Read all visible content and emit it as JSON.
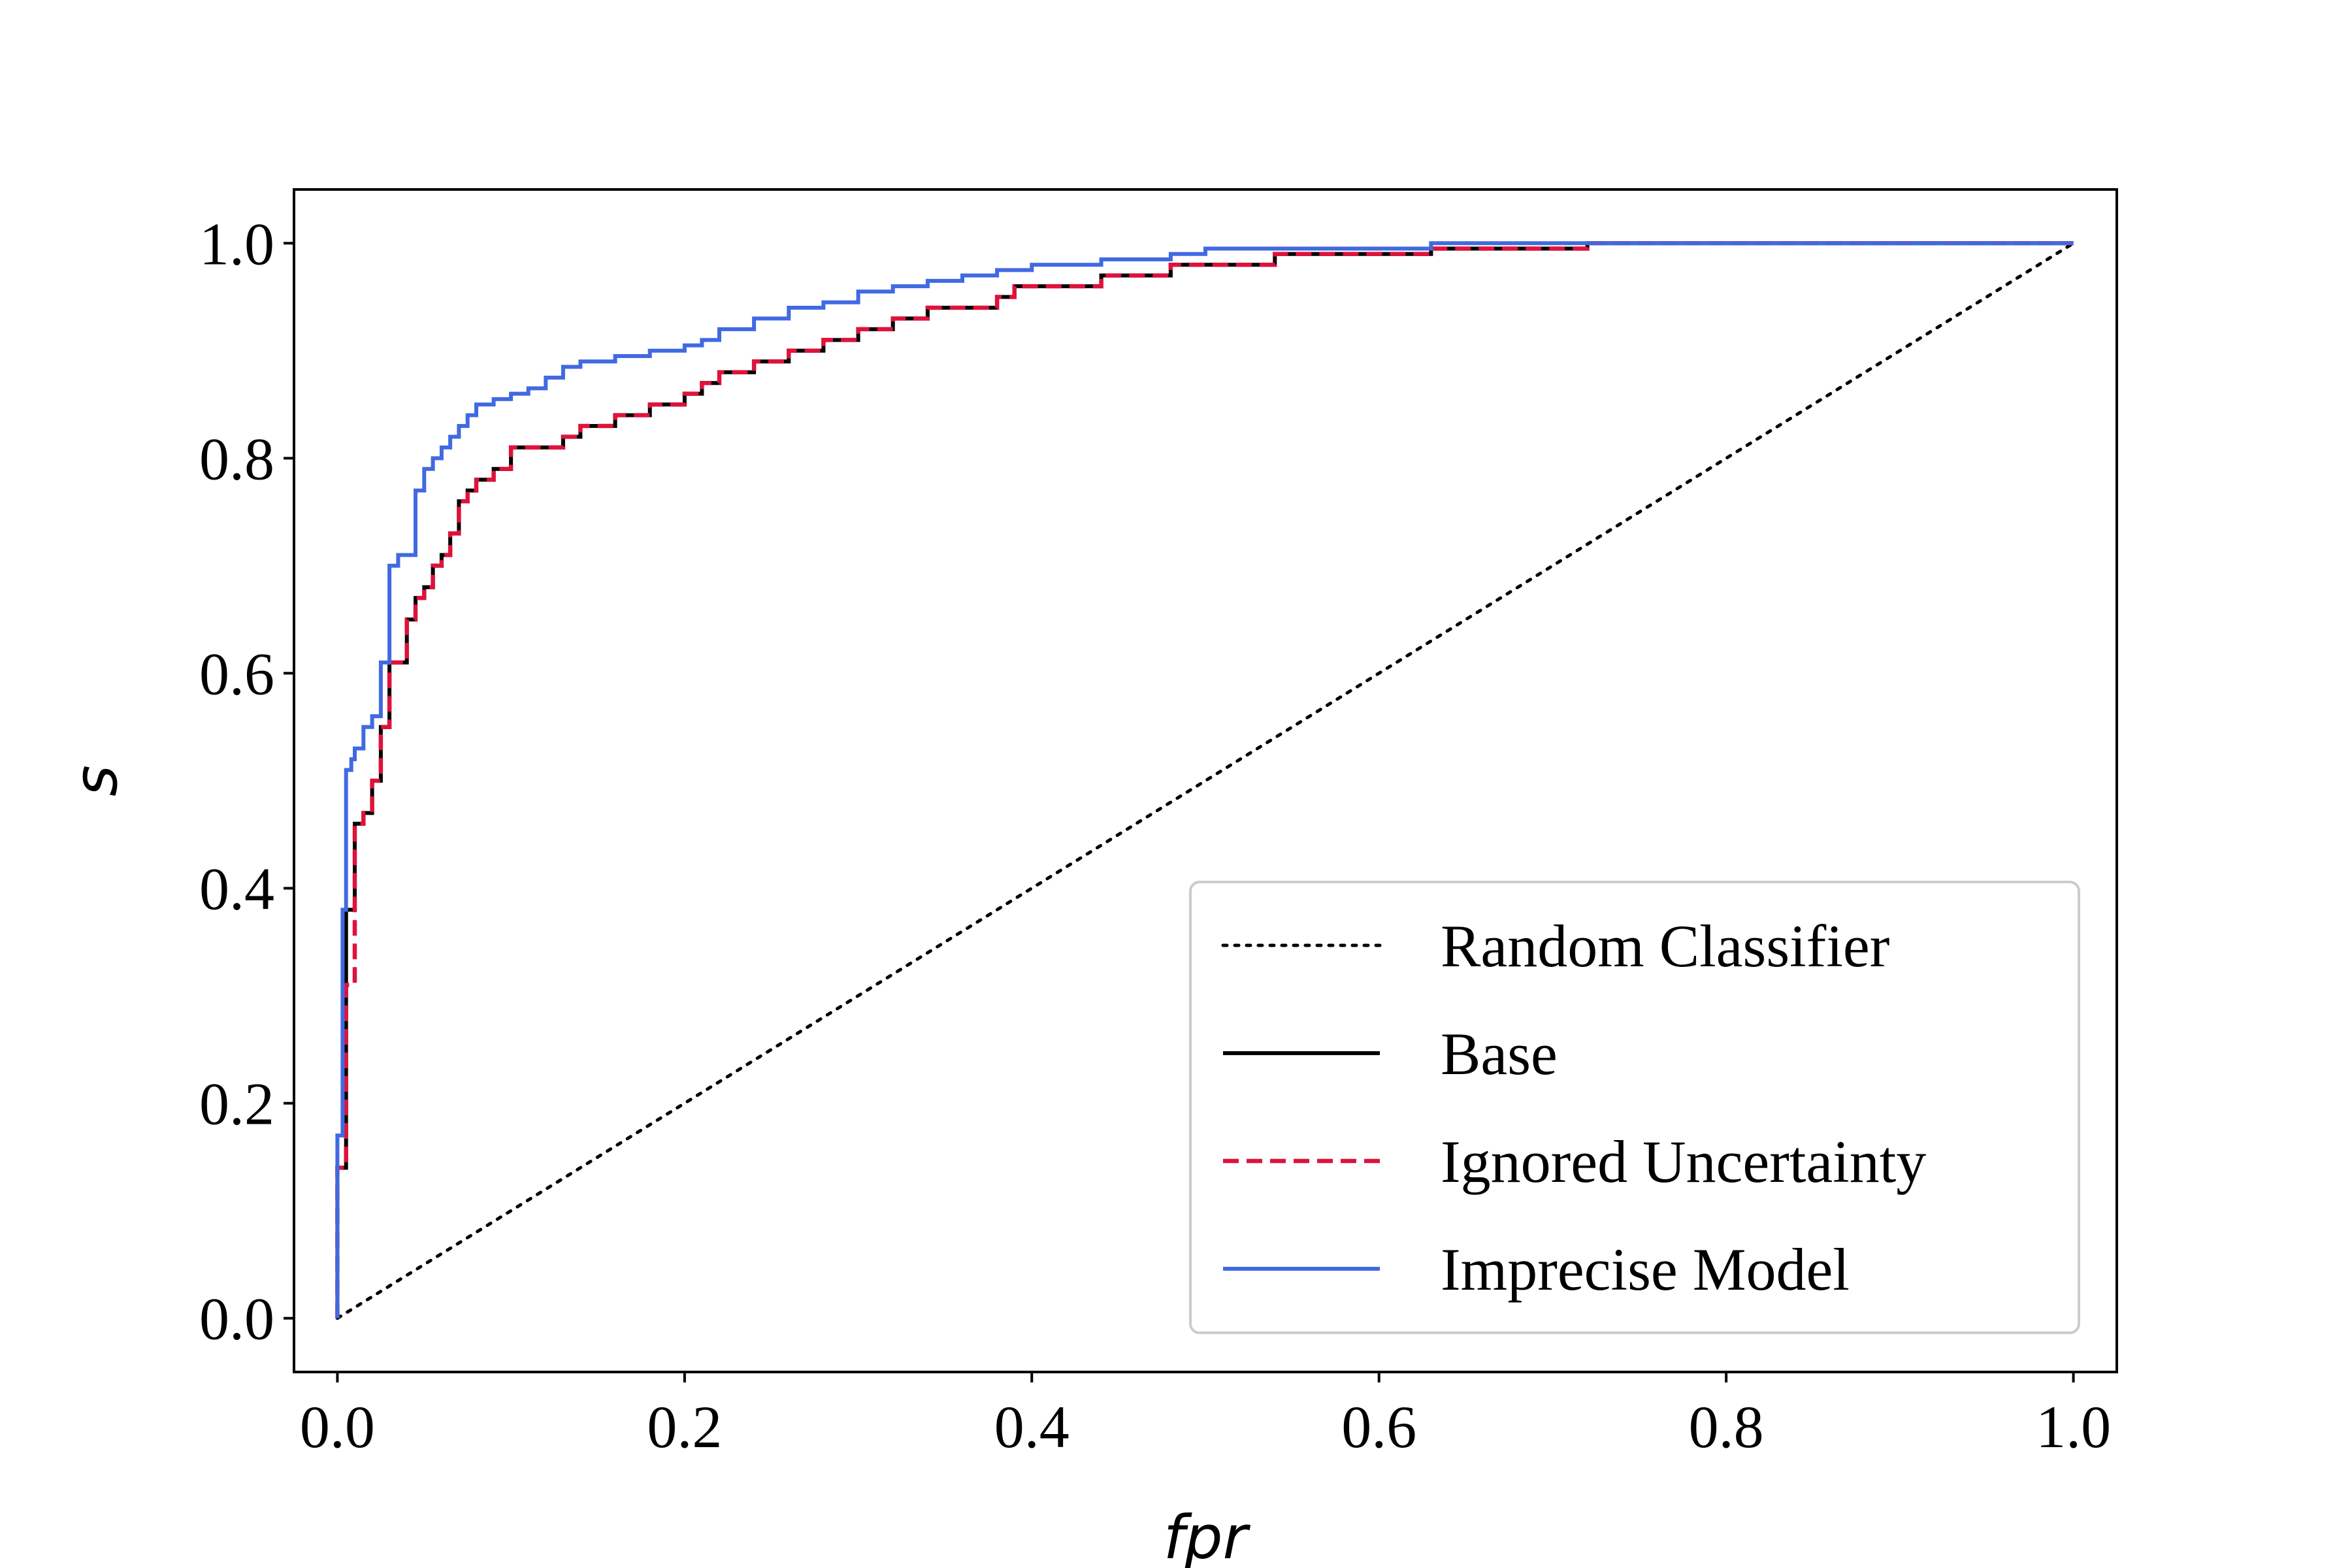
{
  "chart_data": {
    "type": "line",
    "xlabel": "fpr",
    "ylabel": "s",
    "xlim": [
      -0.025,
      1.025
    ],
    "ylim": [
      -0.05,
      1.05
    ],
    "xticks": [
      0.0,
      0.2,
      0.4,
      0.6,
      0.8,
      1.0
    ],
    "yticks": [
      0.0,
      0.2,
      0.4,
      0.6,
      0.8,
      1.0
    ],
    "xtick_labels": [
      "0.0",
      "0.2",
      "0.4",
      "0.6",
      "0.8",
      "1.0"
    ],
    "ytick_labels": [
      "0.0",
      "0.2",
      "0.4",
      "0.6",
      "0.8",
      "1.0"
    ],
    "grid": false,
    "legend_position": "lower-right",
    "series": [
      {
        "name": "Random Classifier",
        "style": "dotted",
        "color": "#000000",
        "x": [
          0.0,
          1.0
        ],
        "y": [
          0.0,
          1.0
        ]
      },
      {
        "name": "Base",
        "style": "solid",
        "color": "#000000",
        "x": [
          0.0,
          0.0,
          0.005,
          0.005,
          0.01,
          0.01,
          0.015,
          0.02,
          0.025,
          0.03,
          0.03,
          0.04,
          0.045,
          0.05,
          0.055,
          0.06,
          0.065,
          0.07,
          0.075,
          0.08,
          0.09,
          0.1,
          0.11,
          0.13,
          0.14,
          0.16,
          0.18,
          0.2,
          0.21,
          0.22,
          0.24,
          0.26,
          0.28,
          0.3,
          0.32,
          0.34,
          0.36,
          0.38,
          0.39,
          0.42,
          0.44,
          0.46,
          0.48,
          0.5,
          0.52,
          0.54,
          0.56,
          0.58,
          0.6,
          0.63,
          0.66,
          0.7,
          0.72,
          1.0
        ],
        "y": [
          0.0,
          0.14,
          0.16,
          0.38,
          0.44,
          0.46,
          0.47,
          0.5,
          0.55,
          0.61,
          0.61,
          0.65,
          0.67,
          0.68,
          0.7,
          0.71,
          0.73,
          0.76,
          0.77,
          0.78,
          0.79,
          0.81,
          0.81,
          0.82,
          0.83,
          0.84,
          0.85,
          0.86,
          0.87,
          0.88,
          0.89,
          0.9,
          0.91,
          0.92,
          0.93,
          0.94,
          0.94,
          0.95,
          0.96,
          0.96,
          0.97,
          0.97,
          0.98,
          0.98,
          0.98,
          0.99,
          0.99,
          0.99,
          0.99,
          0.995,
          0.995,
          0.995,
          1.0,
          1.0
        ]
      },
      {
        "name": "Ignored Uncertainty",
        "style": "dashed",
        "color": "#dc143c",
        "x": [
          0.0,
          0.0,
          0.005,
          0.005,
          0.01,
          0.01,
          0.015,
          0.02,
          0.025,
          0.03,
          0.03,
          0.04,
          0.045,
          0.05,
          0.055,
          0.06,
          0.065,
          0.07,
          0.075,
          0.08,
          0.09,
          0.1,
          0.11,
          0.13,
          0.14,
          0.16,
          0.18,
          0.2,
          0.21,
          0.22,
          0.24,
          0.26,
          0.28,
          0.3,
          0.32,
          0.34,
          0.36,
          0.38,
          0.39,
          0.42,
          0.44,
          0.46,
          0.48,
          0.5,
          0.52,
          0.54,
          0.56,
          0.58,
          0.6,
          0.63,
          0.66,
          0.7,
          0.72,
          1.0
        ],
        "y": [
          0.0,
          0.14,
          0.16,
          0.31,
          0.44,
          0.46,
          0.47,
          0.5,
          0.55,
          0.61,
          0.61,
          0.65,
          0.67,
          0.68,
          0.7,
          0.71,
          0.73,
          0.76,
          0.77,
          0.78,
          0.79,
          0.81,
          0.81,
          0.82,
          0.83,
          0.84,
          0.85,
          0.86,
          0.87,
          0.88,
          0.89,
          0.9,
          0.91,
          0.92,
          0.93,
          0.94,
          0.94,
          0.95,
          0.96,
          0.96,
          0.97,
          0.97,
          0.98,
          0.98,
          0.98,
          0.99,
          0.99,
          0.99,
          0.99,
          0.995,
          0.995,
          0.995,
          1.0,
          1.0
        ]
      },
      {
        "name": "Imprecise Model",
        "style": "solid",
        "color": "#4169e1",
        "x": [
          0.0,
          0.0,
          0.003,
          0.005,
          0.008,
          0.01,
          0.015,
          0.02,
          0.025,
          0.03,
          0.035,
          0.045,
          0.05,
          0.055,
          0.06,
          0.065,
          0.07,
          0.075,
          0.08,
          0.085,
          0.09,
          0.1,
          0.11,
          0.12,
          0.13,
          0.14,
          0.16,
          0.18,
          0.2,
          0.21,
          0.22,
          0.24,
          0.26,
          0.28,
          0.3,
          0.32,
          0.34,
          0.36,
          0.38,
          0.4,
          0.44,
          0.48,
          0.5,
          0.55,
          0.6,
          0.63,
          0.65,
          0.7,
          1.0
        ],
        "y": [
          0.0,
          0.17,
          0.38,
          0.51,
          0.52,
          0.53,
          0.55,
          0.56,
          0.61,
          0.7,
          0.71,
          0.77,
          0.79,
          0.8,
          0.81,
          0.82,
          0.83,
          0.84,
          0.85,
          0.85,
          0.855,
          0.86,
          0.865,
          0.875,
          0.885,
          0.89,
          0.895,
          0.9,
          0.905,
          0.91,
          0.92,
          0.93,
          0.94,
          0.945,
          0.955,
          0.96,
          0.965,
          0.97,
          0.975,
          0.98,
          0.985,
          0.99,
          0.995,
          0.995,
          0.995,
          1.0,
          1.0,
          1.0,
          1.0
        ]
      }
    ]
  }
}
